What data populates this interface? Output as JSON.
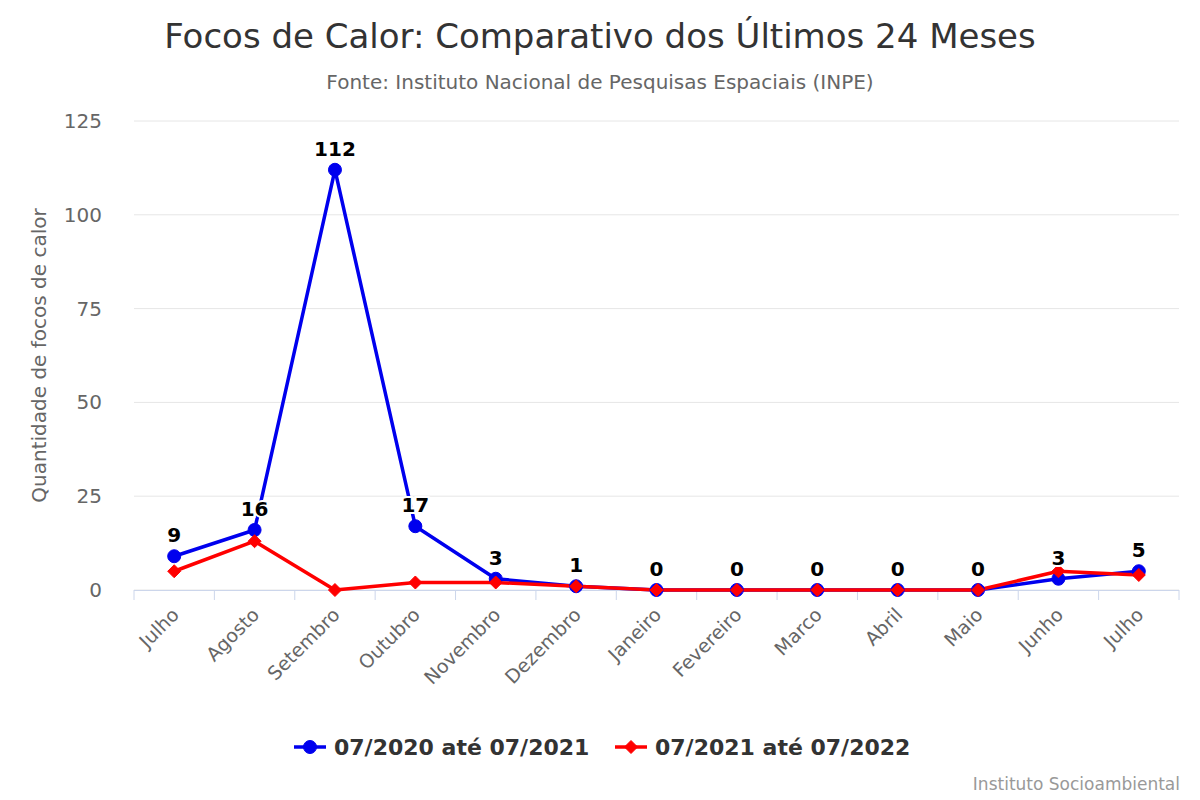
{
  "chart_data": {
    "type": "line",
    "title": "Focos de Calor: Comparativo dos Últimos 24 Meses",
    "subtitle": "Fonte: Instituto Nacional de Pesquisas Espaciais (INPE)",
    "y_label": "Quantidade de focos de calor",
    "credits": "Instituto Socioambiental",
    "categories": [
      "Julho",
      "Agosto",
      "Setembro",
      "Outubro",
      "Novembro",
      "Dezembro",
      "Janeiro",
      "Fevereiro",
      "Marco",
      "Abril",
      "Maio",
      "Junho",
      "Julho"
    ],
    "series": [
      {
        "name": "07/2020 até 07/2021",
        "color": "#0000ee",
        "marker": "circle",
        "data_labels": true,
        "values": [
          9,
          16,
          112,
          17,
          3,
          1,
          0,
          0,
          0,
          0,
          0,
          3,
          5
        ]
      },
      {
        "name": "07/2021 até 07/2022",
        "color": "#ff0000",
        "marker": "diamond",
        "data_labels": false,
        "values": [
          5,
          13,
          0,
          2,
          2,
          1,
          0,
          0,
          0,
          0,
          0,
          5,
          4
        ]
      }
    ],
    "ylim": [
      0,
      125
    ],
    "yticks": [
      0,
      25,
      50,
      75,
      100,
      125
    ],
    "grid": true,
    "legend": "bottom"
  }
}
